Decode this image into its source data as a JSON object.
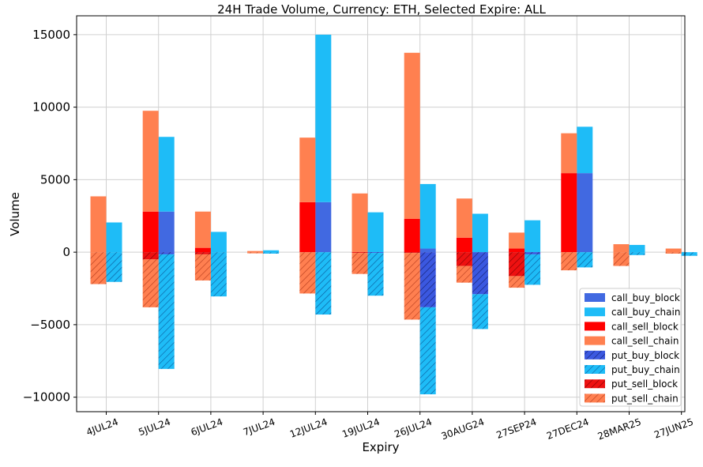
{
  "chart_data": {
    "type": "bar",
    "title": "24H Trade Volume, Currency: ETH, Selected Expire: ALL",
    "xlabel": "Expiry",
    "ylabel": "Volume",
    "ylim": [
      -11000,
      16300
    ],
    "yticks": [
      15000,
      10000,
      5000,
      0,
      -5000,
      -10000
    ],
    "ytick_labels": [
      "15000",
      "10000",
      "5000",
      "0",
      "−5000",
      "−10000"
    ],
    "grid": true,
    "legend_position": "lower-right",
    "categories": [
      "4JUL24",
      "5JUL24",
      "6JUL24",
      "7JUL24",
      "12JUL24",
      "19JUL24",
      "26JUL24",
      "30AUG24",
      "27SEP24",
      "27DEC24",
      "28MAR25",
      "27JUN25"
    ],
    "colors": {
      "call_buy_block": "#4169e1",
      "call_buy_chain": "#1ebcf7",
      "call_sell_block": "#ff0000",
      "call_sell_chain": "#ff8050",
      "put_buy_block": "#3b58e0",
      "put_buy_chain": "#1ebcf7",
      "put_sell_block": "#ee1111",
      "put_sell_chain": "#ff7f50"
    },
    "series": [
      {
        "name": "call_buy_block",
        "side": "buy",
        "values": [
          0,
          2800,
          0,
          0,
          3450,
          0,
          250,
          0,
          0,
          5450,
          0,
          0
        ]
      },
      {
        "name": "call_buy_chain",
        "side": "buy",
        "values": [
          2050,
          5150,
          1400,
          130,
          11550,
          2750,
          4450,
          2650,
          2200,
          3200,
          500,
          0
        ]
      },
      {
        "name": "call_sell_block",
        "side": "sell",
        "values": [
          0,
          2800,
          300,
          0,
          3450,
          0,
          2300,
          1000,
          250,
          5450,
          0,
          0
        ]
      },
      {
        "name": "call_sell_chain",
        "side": "sell",
        "values": [
          3850,
          6950,
          2500,
          80,
          4450,
          4050,
          11450,
          2700,
          1100,
          2750,
          550,
          250
        ]
      },
      {
        "name": "put_buy_block",
        "side": "buy",
        "values": [
          0,
          -150,
          0,
          0,
          0,
          -50,
          -3800,
          -2900,
          -150,
          0,
          0,
          0
        ]
      },
      {
        "name": "put_buy_chain",
        "side": "buy",
        "values": [
          -2050,
          -7900,
          -3050,
          -100,
          -4300,
          -2950,
          -6000,
          -2400,
          -2100,
          -1050,
          -200,
          -250
        ]
      },
      {
        "name": "put_sell_block",
        "side": "sell",
        "values": [
          0,
          -500,
          -150,
          0,
          0,
          -50,
          -50,
          -950,
          -1650,
          0,
          0,
          0
        ]
      },
      {
        "name": "put_sell_chain",
        "side": "sell",
        "values": [
          -2200,
          -3300,
          -1800,
          -80,
          -2850,
          -1450,
          -4600,
          -1150,
          -800,
          -1250,
          -950,
          -100
        ]
      }
    ]
  }
}
